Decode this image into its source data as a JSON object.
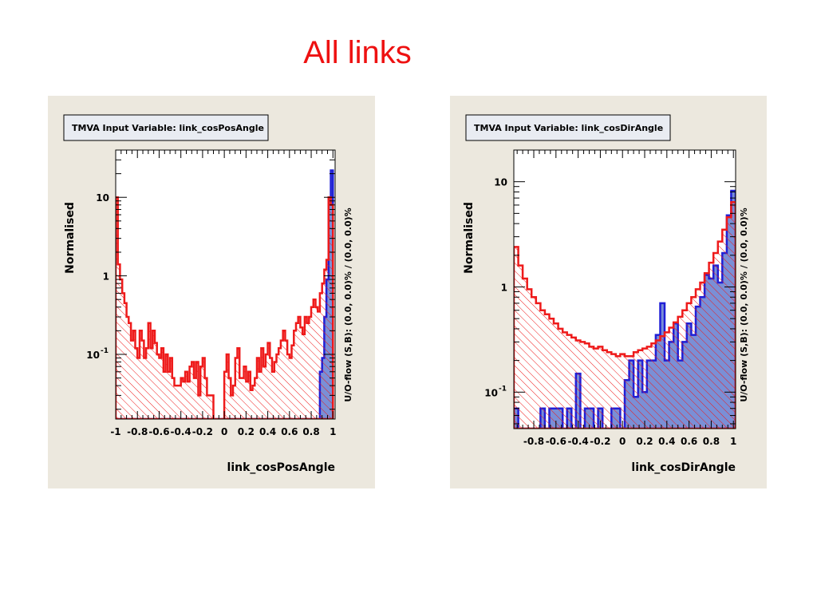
{
  "slide": {
    "title": "All links"
  },
  "colors": {
    "signal": "#1f1fd6",
    "signal_fill": "#7a8fd6",
    "background": "#ee1a1a",
    "panel": "#ece8de"
  },
  "chart_data": [
    {
      "type": "histogram",
      "title": "TMVA Input Variable: link_cosPosAngle",
      "xlabel": "link_cosPosAngle",
      "ylabel": "Normalised",
      "side_label": "U/O-flow (S,B): (0.0, 0.0)% / (0.0, 0.0)%",
      "xlim": [
        -1,
        1.02
      ],
      "ylim": [
        0.015,
        40
      ],
      "yscale": "log",
      "xticks": [
        {
          "value": -1,
          "label": "-1"
        },
        {
          "value": -0.8,
          "label": "-0.8"
        },
        {
          "value": -0.6,
          "label": "-0.6"
        },
        {
          "value": -0.4,
          "label": "-0.4"
        },
        {
          "value": -0.2,
          "label": "-0.2"
        },
        {
          "value": 0,
          "label": "0"
        },
        {
          "value": 0.2,
          "label": "0.2"
        },
        {
          "value": 0.4,
          "label": "0.4"
        },
        {
          "value": 0.6,
          "label": "0.6"
        },
        {
          "value": 0.8,
          "label": "0.8"
        },
        {
          "value": 1,
          "label": "1"
        }
      ],
      "yticks": [
        {
          "value": 10,
          "label": "10"
        },
        {
          "value": 1,
          "label": "1"
        },
        {
          "value": 0.1,
          "label": "10",
          "exp": "-1"
        }
      ],
      "bin_width": 0.02,
      "background_values": [
        10,
        1.4,
        0.9,
        0.6,
        0.45,
        0.3,
        0.25,
        0.15,
        0.2,
        0.12,
        0.09,
        0.2,
        0.15,
        0.09,
        0.12,
        0.25,
        0.12,
        0.2,
        0.14,
        0.1,
        0.09,
        0.12,
        0.06,
        0.1,
        0.06,
        0.09,
        0.05,
        0.04,
        0.04,
        0.04,
        0.05,
        0.045,
        0.06,
        0.045,
        0.07,
        0.08,
        0.05,
        0.08,
        0.03,
        0.07,
        0.09,
        0.05,
        0.03,
        0.03,
        0.03,
        0.015,
        0.015,
        0.015,
        0.015,
        0.015,
        0.06,
        0.1,
        0.05,
        0.03,
        0.04,
        0.09,
        0.12,
        0.05,
        0.05,
        0.07,
        0.045,
        0.06,
        0.035,
        0.04,
        0.05,
        0.09,
        0.06,
        0.12,
        0.07,
        0.1,
        0.14,
        0.09,
        0.06,
        0.08,
        0.1,
        0.12,
        0.15,
        0.2,
        0.15,
        0.1,
        0.09,
        0.13,
        0.2,
        0.25,
        0.3,
        0.22,
        0.18,
        0.3,
        0.25,
        0.3,
        0.4,
        0.5,
        0.4,
        0.35,
        0.6,
        0.8,
        1.2,
        1.6,
        10,
        8
      ],
      "signal_values": [
        0.015,
        0.015,
        0.015,
        0.015,
        0.015,
        0.015,
        0.015,
        0.015,
        0.015,
        0.015,
        0.015,
        0.015,
        0.015,
        0.015,
        0.015,
        0.015,
        0.015,
        0.015,
        0.015,
        0.015,
        0.015,
        0.015,
        0.015,
        0.015,
        0.015,
        0.015,
        0.015,
        0.015,
        0.015,
        0.015,
        0.015,
        0.015,
        0.015,
        0.015,
        0.015,
        0.015,
        0.015,
        0.015,
        0.015,
        0.015,
        0.015,
        0.015,
        0.015,
        0.015,
        0.015,
        0.015,
        0.015,
        0.015,
        0.015,
        0.015,
        0.015,
        0.015,
        0.015,
        0.015,
        0.015,
        0.015,
        0.015,
        0.015,
        0.015,
        0.015,
        0.015,
        0.015,
        0.015,
        0.015,
        0.015,
        0.015,
        0.015,
        0.015,
        0.015,
        0.015,
        0.015,
        0.015,
        0.015,
        0.015,
        0.015,
        0.015,
        0.015,
        0.015,
        0.015,
        0.015,
        0.015,
        0.015,
        0.015,
        0.015,
        0.015,
        0.015,
        0.015,
        0.015,
        0.015,
        0.015,
        0.015,
        0.015,
        0.015,
        0.015,
        0.06,
        0.09,
        0.3,
        0.9,
        10,
        22
      ]
    },
    {
      "type": "histogram",
      "title": "TMVA Input Variable: link_cosDirAngle",
      "xlabel": "link_cosDirAngle",
      "ylabel": "Normalised",
      "side_label": "U/O-flow (S,B): (0.0, 0.0)% / (0.0, 0.0)%",
      "xlim": [
        -0.98,
        1.02
      ],
      "ylim": [
        0.045,
        20
      ],
      "yscale": "log",
      "xticks": [
        {
          "value": -0.8,
          "label": "-0.8"
        },
        {
          "value": -0.6,
          "label": "-0.6"
        },
        {
          "value": -0.4,
          "label": "-0.4"
        },
        {
          "value": -0.2,
          "label": "-0.2"
        },
        {
          "value": 0,
          "label": "0"
        },
        {
          "value": 0.2,
          "label": "0.2"
        },
        {
          "value": 0.4,
          "label": "0.4"
        },
        {
          "value": 0.6,
          "label": "0.6"
        },
        {
          "value": 0.8,
          "label": "0.8"
        },
        {
          "value": 1,
          "label": "1"
        }
      ],
      "yticks": [
        {
          "value": 10,
          "label": "10"
        },
        {
          "value": 1,
          "label": "1"
        },
        {
          "value": 0.1,
          "label": "10",
          "exp": "-1"
        }
      ],
      "bin_width": 0.04,
      "background_values": [
        2.4,
        1.6,
        1.2,
        0.95,
        0.8,
        0.7,
        0.6,
        0.55,
        0.5,
        0.45,
        0.4,
        0.37,
        0.35,
        0.33,
        0.31,
        0.3,
        0.29,
        0.27,
        0.26,
        0.27,
        0.25,
        0.24,
        0.23,
        0.22,
        0.23,
        0.22,
        0.22,
        0.24,
        0.25,
        0.26,
        0.27,
        0.29,
        0.31,
        0.34,
        0.37,
        0.41,
        0.46,
        0.52,
        0.6,
        0.7,
        0.8,
        0.95,
        1.1,
        1.35,
        1.7,
        2.1,
        2.7,
        3.5,
        4.6,
        6.4
      ],
      "signal_values": [
        0.07,
        0.045,
        0.045,
        0.045,
        0.045,
        0.045,
        0.07,
        0.045,
        0.07,
        0.07,
        0.07,
        0.045,
        0.07,
        0.045,
        0.15,
        0.045,
        0.07,
        0.07,
        0.045,
        0.07,
        0.045,
        0.045,
        0.07,
        0.07,
        0.045,
        0.13,
        0.2,
        0.09,
        0.2,
        0.1,
        0.2,
        0.2,
        0.35,
        0.7,
        0.2,
        0.3,
        0.45,
        0.2,
        0.3,
        0.45,
        0.35,
        0.65,
        0.8,
        1.3,
        1.2,
        1.6,
        1.1,
        2.1,
        4.8,
        8.2
      ]
    }
  ]
}
